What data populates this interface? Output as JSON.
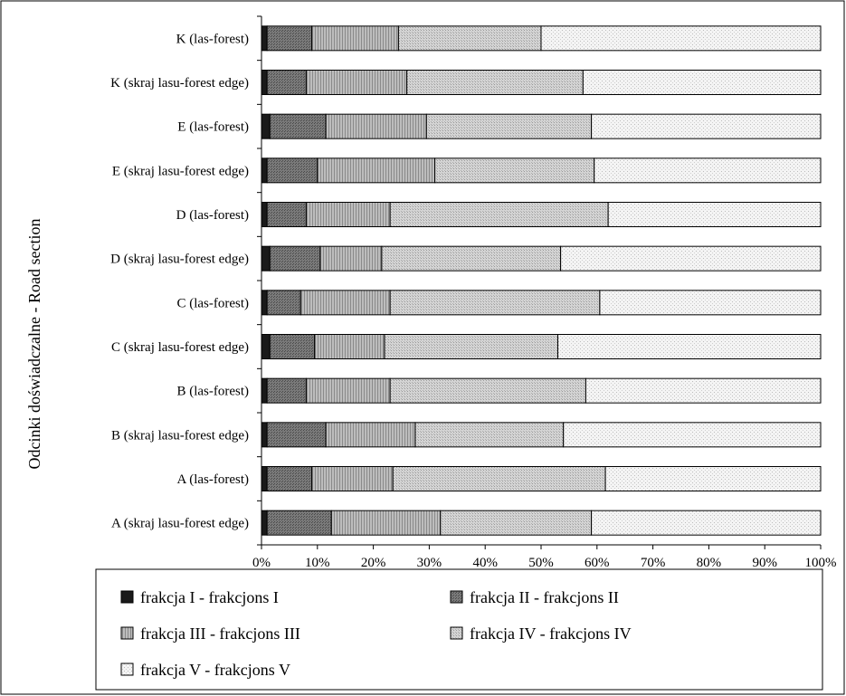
{
  "chart_data": {
    "type": "bar",
    "orientation": "horizontal",
    "stacked": "percent",
    "ylabel": "Odcinki doświadczalne - Road section",
    "xlim": [
      0,
      100
    ],
    "x_ticks": [
      "0%",
      "10%",
      "20%",
      "30%",
      "40%",
      "50%",
      "60%",
      "70%",
      "80%",
      "90%",
      "100%"
    ],
    "grid": false,
    "legend_position": "bottom",
    "categories": [
      "K (las-forest)",
      "K (skraj lasu-forest edge)",
      "E (las-forest)",
      "E (skraj lasu-forest edge)",
      "D (las-forest)",
      "D (skraj lasu-forest edge)",
      "C (las-forest)",
      "C (skraj lasu-forest edge)",
      "B (las-forest)",
      "B (skraj lasu-forest edge)",
      "A (las-forest)",
      "A (skraj lasu-forest edge)"
    ],
    "series": [
      {
        "name": "frakcja I - frakcjons I",
        "fill": "#1a1a1a",
        "values": [
          1.0,
          1.0,
          1.5,
          1.0,
          1.0,
          1.5,
          1.0,
          1.5,
          1.0,
          1.0,
          1.0,
          1.0
        ]
      },
      {
        "name": "frakcja II - frakcjons II",
        "fill": "#6e6e6e",
        "values": [
          8.0,
          7.0,
          10.0,
          9.0,
          7.0,
          9.0,
          6.0,
          8.0,
          7.0,
          10.5,
          8.0,
          11.5
        ]
      },
      {
        "name": "frakcja III - frakcjons III",
        "fill": "#a8a8a8",
        "values": [
          15.5,
          18.0,
          18.0,
          21.0,
          15.0,
          11.0,
          16.0,
          12.5,
          15.0,
          16.0,
          14.5,
          19.5
        ]
      },
      {
        "name": "frakcja IV - frakcjons IV",
        "fill": "#c8c8c8",
        "values": [
          25.5,
          31.5,
          29.5,
          28.5,
          39.0,
          32.0,
          37.5,
          31.0,
          35.0,
          26.5,
          38.0,
          27.0
        ]
      },
      {
        "name": "frakcja V - frakcjons V",
        "fill": "#ececec",
        "values": [
          50.0,
          42.5,
          41.0,
          40.5,
          38.0,
          46.5,
          39.5,
          47.0,
          42.0,
          46.0,
          38.5,
          41.0
        ]
      }
    ]
  }
}
